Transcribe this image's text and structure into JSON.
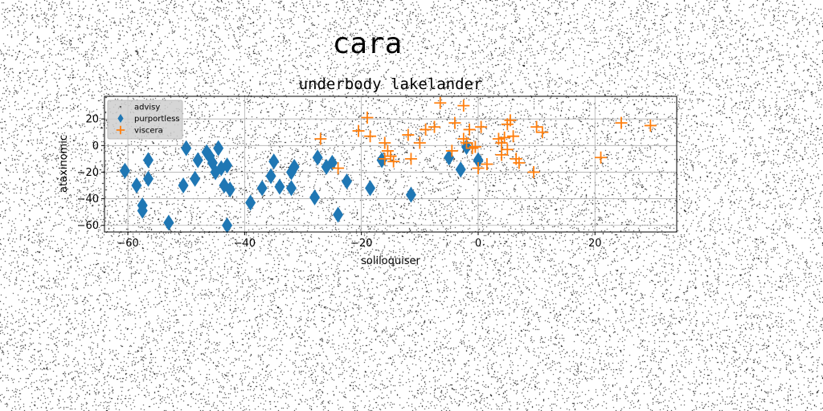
{
  "suptitle": "cara",
  "chart_data": {
    "type": "scatter",
    "title": "underbody lakelander",
    "xlabel": "soliloquiser",
    "ylabel": "ataxinomic",
    "xlim": [
      -64,
      34
    ],
    "ylim": [
      -65,
      37
    ],
    "xticks": [
      -60,
      -40,
      -20,
      0,
      20
    ],
    "xtick_labels": [
      "−60",
      "−40",
      "−20",
      "0",
      "20"
    ],
    "yticks": [
      -60,
      -40,
      -20,
      0,
      20
    ],
    "ytick_labels": [
      "−60",
      "−40",
      "−20",
      "0",
      "20"
    ],
    "grid": true,
    "legend_position": "top-left",
    "series": [
      {
        "name": "advisy",
        "marker": "point",
        "color": "#000000",
        "points": []
      },
      {
        "name": "purportless",
        "marker": "thin-diamond",
        "color": "#1f77b4",
        "points": [
          [
            -60.5,
            -19
          ],
          [
            -58.5,
            -30
          ],
          [
            -57.5,
            -45
          ],
          [
            -57.5,
            -49
          ],
          [
            -56.5,
            -11
          ],
          [
            -56.5,
            -25
          ],
          [
            -53,
            -58
          ],
          [
            -50.5,
            -30
          ],
          [
            -50,
            -2
          ],
          [
            -48.5,
            -25
          ],
          [
            -48,
            -11
          ],
          [
            -46.5,
            -5
          ],
          [
            -46,
            -8
          ],
          [
            -45.5,
            -13
          ],
          [
            -45,
            -20
          ],
          [
            -44.5,
            -2
          ],
          [
            -44,
            -17
          ],
          [
            -43.5,
            -30
          ],
          [
            -43,
            -15
          ],
          [
            -43,
            -60
          ],
          [
            -42.5,
            -33
          ],
          [
            -39,
            -43
          ],
          [
            -37,
            -32
          ],
          [
            -35.5,
            -23
          ],
          [
            -35,
            -12
          ],
          [
            -34,
            -31
          ],
          [
            -32,
            -32
          ],
          [
            -32,
            -20
          ],
          [
            -31.5,
            -16
          ],
          [
            -28,
            -39
          ],
          [
            -27.5,
            -9
          ],
          [
            -26,
            -16
          ],
          [
            -25,
            -13
          ],
          [
            -24,
            -52
          ],
          [
            -22.5,
            -27
          ],
          [
            -18.5,
            -32
          ],
          [
            -16.5,
            -11
          ],
          [
            -11.5,
            -37
          ],
          [
            -5,
            -9
          ],
          [
            -3,
            -18
          ],
          [
            -2,
            -1
          ],
          [
            0,
            -11
          ]
        ]
      },
      {
        "name": "viscera",
        "marker": "plus",
        "color": "#ff7f0e",
        "points": [
          [
            -27,
            5
          ],
          [
            -24,
            -17
          ],
          [
            -20.5,
            11
          ],
          [
            -19,
            21
          ],
          [
            -18.5,
            7
          ],
          [
            -16,
            2
          ],
          [
            -16,
            -10
          ],
          [
            -15.5,
            -4
          ],
          [
            -15,
            -8
          ],
          [
            -14.5,
            -12
          ],
          [
            -12,
            8
          ],
          [
            -11.5,
            -10
          ],
          [
            -10,
            2
          ],
          [
            -9,
            12
          ],
          [
            -7.5,
            14
          ],
          [
            -6.5,
            32
          ],
          [
            -4.5,
            -4
          ],
          [
            -4,
            17
          ],
          [
            -2.5,
            30
          ],
          [
            -2.5,
            5
          ],
          [
            -2,
            2
          ],
          [
            -1.5,
            12
          ],
          [
            -1,
            -2
          ],
          [
            -0.5,
            -1
          ],
          [
            0,
            -17
          ],
          [
            0.5,
            14
          ],
          [
            1.5,
            -14
          ],
          [
            3.5,
            5
          ],
          [
            4,
            2
          ],
          [
            4,
            -7
          ],
          [
            4.5,
            6
          ],
          [
            5,
            -3
          ],
          [
            5,
            16
          ],
          [
            5.5,
            19
          ],
          [
            6,
            7
          ],
          [
            6.5,
            -10
          ],
          [
            7,
            -13
          ],
          [
            9.5,
            -20
          ],
          [
            10,
            14
          ],
          [
            11,
            10
          ],
          [
            21,
            -9
          ],
          [
            24.5,
            17
          ],
          [
            29.5,
            15
          ]
        ]
      }
    ]
  }
}
